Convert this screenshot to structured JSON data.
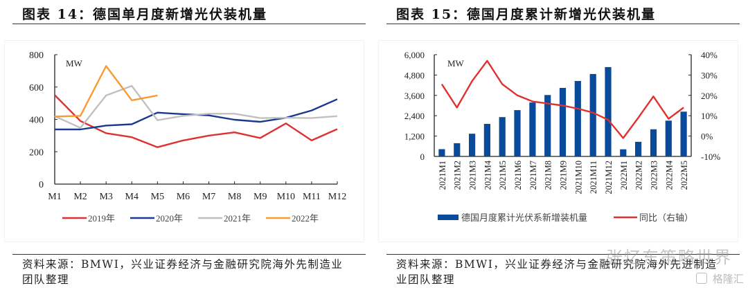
{
  "left": {
    "title": "图表 14：德国单月度新增光伏装机量",
    "source": "资料来源：BMWI，兴业证券经济与金融研究院海外先制造业团队整理"
  },
  "right": {
    "title": "图表 15：德国月度累计新增光伏装机量",
    "source": "资料来源：BMWI，兴业证券经济与金融研究院海外先进制造业团队整理"
  },
  "watermark": {
    "text": "张忆东策略世界",
    "brand": "格隆汇"
  },
  "chart_data": [
    {
      "type": "line",
      "title": "图表 14：德国单月度新增光伏装机量",
      "unit_label": "MW",
      "xlabel": "",
      "ylabel": "MW",
      "x": [
        "M1",
        "M2",
        "M3",
        "M4",
        "M5",
        "M6",
        "M7",
        "M8",
        "M9",
        "M10",
        "M11",
        "M12"
      ],
      "ylim": [
        0,
        800
      ],
      "yticks": [
        0,
        200,
        400,
        600,
        800
      ],
      "grid": false,
      "legend_position": "bottom",
      "series": [
        {
          "name": "2019年",
          "color": "#e03030",
          "values": [
            550,
            390,
            315,
            290,
            228,
            270,
            300,
            320,
            285,
            375,
            270,
            340
          ]
        },
        {
          "name": "2020年",
          "color": "#1a3a8f",
          "values": [
            338,
            338,
            362,
            370,
            442,
            432,
            425,
            398,
            385,
            410,
            455,
            525
          ]
        },
        {
          "name": "2021年",
          "color": "#c0c0c0",
          "values": [
            420,
            348,
            548,
            607,
            395,
            422,
            435,
            435,
            408,
            410,
            408,
            420
          ]
        },
        {
          "name": "2022年",
          "color": "#f79b32",
          "values": [
            418,
            422,
            730,
            518,
            548
          ]
        }
      ]
    },
    {
      "type": "bar+line",
      "title": "图表 15：德国月度累计新增光伏装机量",
      "unit_label": "MW",
      "xlabel": "",
      "ylabel": "MW",
      "categories": [
        "2021M1",
        "2021M2",
        "2021M3",
        "2021M4",
        "2021M5",
        "2021M6",
        "2021M7",
        "2021M8",
        "2021M9",
        "2021M10",
        "2021M11",
        "2021M12",
        "2022M1",
        "2022M2",
        "2022M3",
        "2022M4",
        "2022M5"
      ],
      "ylim": [
        0,
        6000
      ],
      "yticks": [
        0,
        1200,
        2400,
        3600,
        4800,
        6000
      ],
      "ytick_labels": [
        "0",
        "1,200",
        "2,400",
        "3,600",
        "4,800",
        "6,000"
      ],
      "y2lim": [
        -10,
        40
      ],
      "y2ticks": [
        -10,
        0,
        10,
        20,
        30,
        40
      ],
      "y2tick_labels": [
        "-10%",
        "0%",
        "10%",
        "20%",
        "30%",
        "40%"
      ],
      "grid": false,
      "legend_position": "bottom",
      "series": [
        {
          "name": "德国月度累计光伏系新增装机量",
          "type": "bar",
          "axis": "left",
          "color": "#0a4a9a",
          "values": [
            430,
            780,
            1340,
            1920,
            2320,
            2730,
            3180,
            3620,
            4040,
            4450,
            4860,
            5270,
            420,
            860,
            1600,
            2110,
            2640
          ]
        },
        {
          "name": "同比（右轴）",
          "type": "line",
          "axis": "right",
          "color": "#e03030",
          "values": [
            25.5,
            14,
            27,
            37,
            25.5,
            20,
            17,
            16,
            15,
            13.5,
            11.5,
            8,
            -1,
            9,
            19.5,
            8.5,
            14
          ]
        }
      ]
    }
  ]
}
